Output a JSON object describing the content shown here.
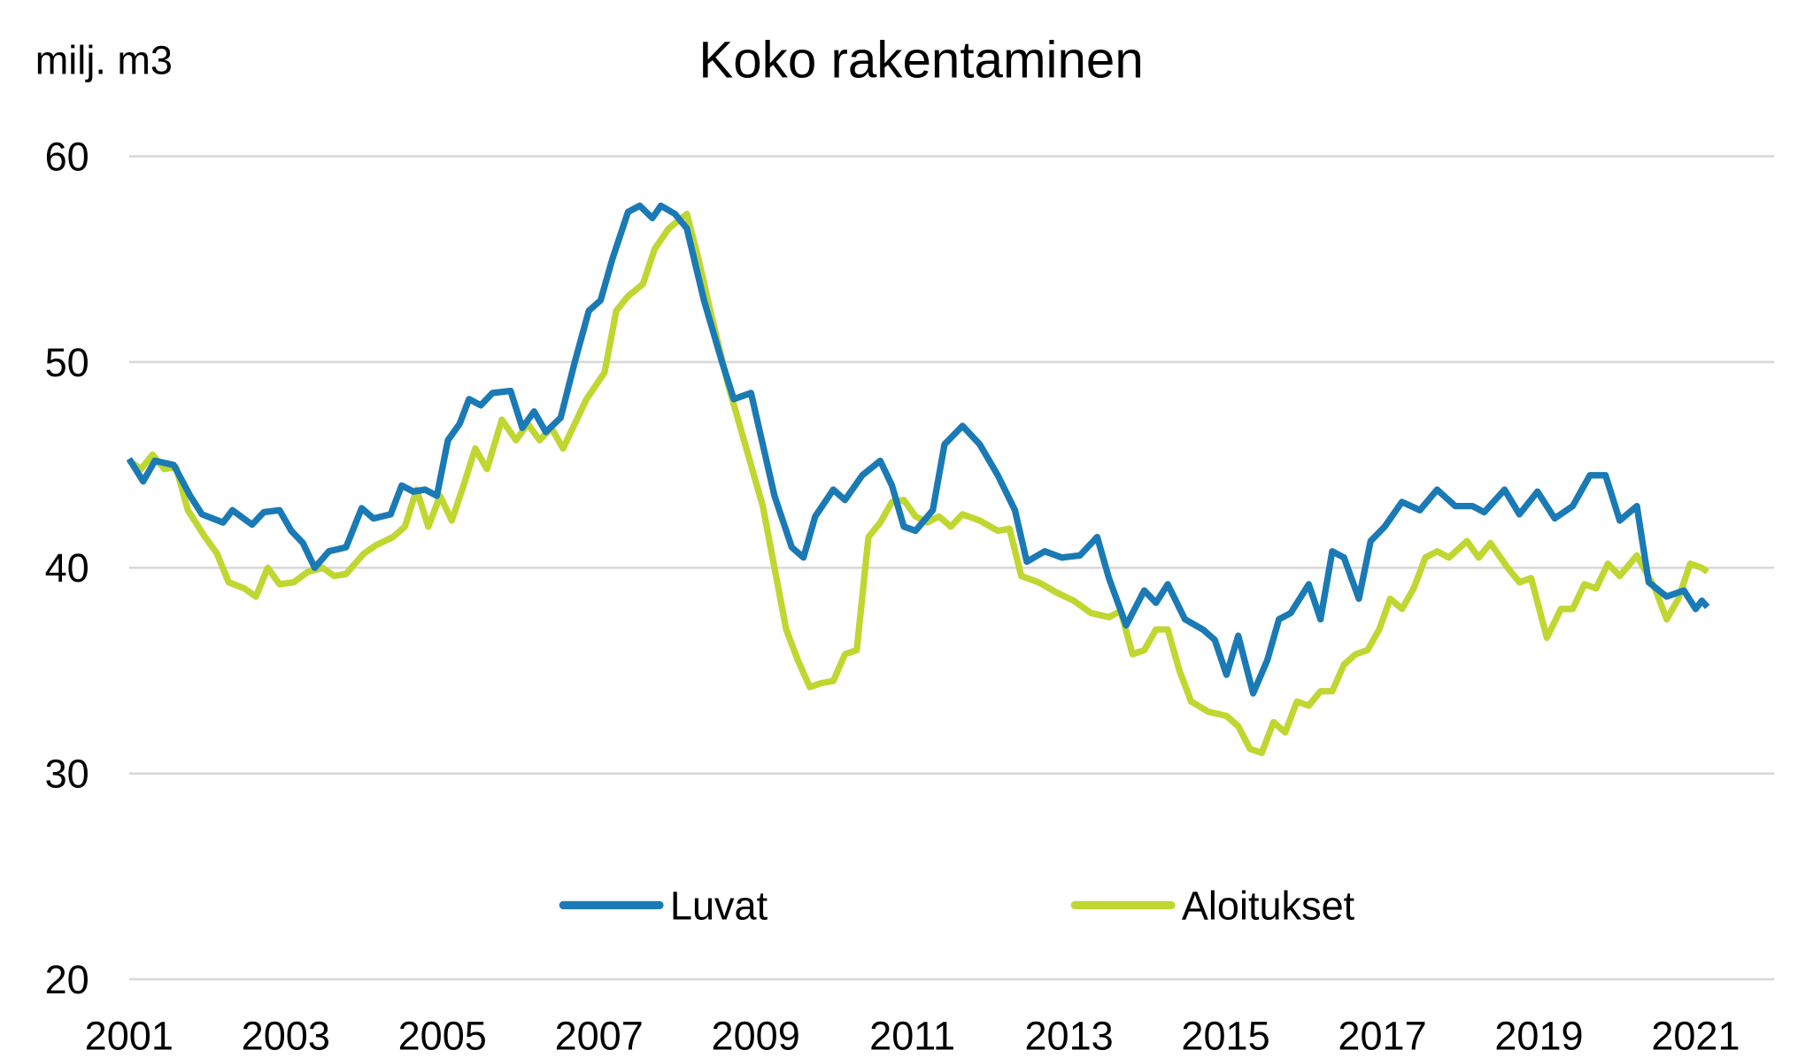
{
  "chart_data": {
    "type": "line",
    "title": "Koko rakentaminen",
    "ylabel": "milj. m3",
    "xlabel": "",
    "ylim": [
      20,
      60
    ],
    "xlim": [
      2001,
      2021.9
    ],
    "yticks": [
      20,
      30,
      40,
      50,
      60
    ],
    "xticks": [
      2001,
      2003,
      2005,
      2007,
      2009,
      2011,
      2013,
      2015,
      2017,
      2019,
      2021
    ],
    "grid": "horizontal",
    "legend_position": "bottom-center",
    "series": [
      {
        "name": "Luvat",
        "color": "#1a7ab5",
        "points": [
          [
            2001.0,
            45.3
          ],
          [
            2001.18,
            44.2
          ],
          [
            2001.33,
            45.2
          ],
          [
            2001.57,
            45.0
          ],
          [
            2001.78,
            43.5
          ],
          [
            2001.93,
            42.6
          ],
          [
            2002.2,
            42.2
          ],
          [
            2002.32,
            42.8
          ],
          [
            2002.57,
            42.1
          ],
          [
            2002.72,
            42.7
          ],
          [
            2002.92,
            42.8
          ],
          [
            2003.07,
            41.8
          ],
          [
            2003.22,
            41.2
          ],
          [
            2003.37,
            40.0
          ],
          [
            2003.55,
            40.8
          ],
          [
            2003.77,
            41.0
          ],
          [
            2003.97,
            42.9
          ],
          [
            2004.12,
            42.4
          ],
          [
            2004.34,
            42.6
          ],
          [
            2004.48,
            44.0
          ],
          [
            2004.63,
            43.7
          ],
          [
            2004.78,
            43.8
          ],
          [
            2004.93,
            43.5
          ],
          [
            2005.07,
            46.2
          ],
          [
            2005.22,
            47.0
          ],
          [
            2005.34,
            48.2
          ],
          [
            2005.49,
            47.9
          ],
          [
            2005.64,
            48.5
          ],
          [
            2005.87,
            48.6
          ],
          [
            2006.02,
            46.8
          ],
          [
            2006.17,
            47.6
          ],
          [
            2006.32,
            46.6
          ],
          [
            2006.51,
            47.3
          ],
          [
            2006.69,
            50.0
          ],
          [
            2006.87,
            52.5
          ],
          [
            2007.02,
            53.0
          ],
          [
            2007.17,
            55.0
          ],
          [
            2007.37,
            57.3
          ],
          [
            2007.52,
            57.6
          ],
          [
            2007.68,
            57.0
          ],
          [
            2007.79,
            57.6
          ],
          [
            2007.97,
            57.2
          ],
          [
            2008.12,
            56.5
          ],
          [
            2008.34,
            53.0
          ],
          [
            2008.57,
            50.0
          ],
          [
            2008.72,
            48.2
          ],
          [
            2008.94,
            48.5
          ],
          [
            2009.09,
            46.0
          ],
          [
            2009.24,
            43.5
          ],
          [
            2009.46,
            41.0
          ],
          [
            2009.61,
            40.5
          ],
          [
            2009.76,
            42.5
          ],
          [
            2009.99,
            43.8
          ],
          [
            2010.14,
            43.3
          ],
          [
            2010.36,
            44.5
          ],
          [
            2010.59,
            45.2
          ],
          [
            2010.74,
            44.0
          ],
          [
            2010.89,
            42.0
          ],
          [
            2011.04,
            41.8
          ],
          [
            2011.26,
            42.8
          ],
          [
            2011.41,
            46.0
          ],
          [
            2011.64,
            46.9
          ],
          [
            2011.86,
            46.0
          ],
          [
            2012.09,
            44.5
          ],
          [
            2012.31,
            42.8
          ],
          [
            2012.46,
            40.3
          ],
          [
            2012.69,
            40.8
          ],
          [
            2012.91,
            40.5
          ],
          [
            2013.14,
            40.6
          ],
          [
            2013.36,
            41.5
          ],
          [
            2013.51,
            39.5
          ],
          [
            2013.73,
            37.2
          ],
          [
            2013.96,
            38.9
          ],
          [
            2014.11,
            38.3
          ],
          [
            2014.26,
            39.2
          ],
          [
            2014.48,
            37.5
          ],
          [
            2014.71,
            37.0
          ],
          [
            2014.86,
            36.5
          ],
          [
            2015.01,
            34.8
          ],
          [
            2015.16,
            36.7
          ],
          [
            2015.35,
            33.9
          ],
          [
            2015.53,
            35.5
          ],
          [
            2015.68,
            37.5
          ],
          [
            2015.83,
            37.8
          ],
          [
            2016.06,
            39.2
          ],
          [
            2016.21,
            37.5
          ],
          [
            2016.36,
            40.8
          ],
          [
            2016.51,
            40.5
          ],
          [
            2016.7,
            38.5
          ],
          [
            2016.85,
            41.3
          ],
          [
            2017.03,
            42.0
          ],
          [
            2017.25,
            43.2
          ],
          [
            2017.48,
            42.8
          ],
          [
            2017.7,
            43.8
          ],
          [
            2017.93,
            43.0
          ],
          [
            2018.15,
            43.0
          ],
          [
            2018.3,
            42.7
          ],
          [
            2018.56,
            43.8
          ],
          [
            2018.75,
            42.6
          ],
          [
            2018.98,
            43.7
          ],
          [
            2019.2,
            42.4
          ],
          [
            2019.43,
            43.0
          ],
          [
            2019.65,
            44.5
          ],
          [
            2019.85,
            44.5
          ],
          [
            2020.03,
            42.3
          ],
          [
            2020.25,
            43.0
          ],
          [
            2020.4,
            39.3
          ],
          [
            2020.63,
            38.6
          ],
          [
            2020.85,
            38.9
          ],
          [
            2021.0,
            38.0
          ],
          [
            2021.08,
            38.4
          ],
          [
            2021.15,
            38.1
          ]
        ]
      },
      {
        "name": "Aloitukset",
        "color": "#bfd730",
        "points": [
          [
            2001.0,
            45.2
          ],
          [
            2001.15,
            44.8
          ],
          [
            2001.3,
            45.5
          ],
          [
            2001.45,
            44.8
          ],
          [
            2001.6,
            44.9
          ],
          [
            2001.75,
            42.8
          ],
          [
            2001.97,
            41.5
          ],
          [
            2002.12,
            40.7
          ],
          [
            2002.27,
            39.3
          ],
          [
            2002.47,
            39.0
          ],
          [
            2002.62,
            38.6
          ],
          [
            2002.77,
            40.0
          ],
          [
            2002.92,
            39.2
          ],
          [
            2003.1,
            39.3
          ],
          [
            2003.28,
            39.8
          ],
          [
            2003.47,
            40.0
          ],
          [
            2003.62,
            39.6
          ],
          [
            2003.77,
            39.7
          ],
          [
            2004.0,
            40.7
          ],
          [
            2004.15,
            41.1
          ],
          [
            2004.37,
            41.5
          ],
          [
            2004.52,
            42.0
          ],
          [
            2004.67,
            43.8
          ],
          [
            2004.82,
            42.0
          ],
          [
            2004.97,
            43.5
          ],
          [
            2005.12,
            42.3
          ],
          [
            2005.27,
            44.0
          ],
          [
            2005.42,
            45.8
          ],
          [
            2005.57,
            44.8
          ],
          [
            2005.76,
            47.2
          ],
          [
            2005.94,
            46.2
          ],
          [
            2006.09,
            47.0
          ],
          [
            2006.24,
            46.2
          ],
          [
            2006.39,
            46.8
          ],
          [
            2006.54,
            45.8
          ],
          [
            2006.69,
            47.0
          ],
          [
            2006.84,
            48.2
          ],
          [
            2007.07,
            49.5
          ],
          [
            2007.22,
            52.5
          ],
          [
            2007.37,
            53.2
          ],
          [
            2007.56,
            53.8
          ],
          [
            2007.71,
            55.5
          ],
          [
            2007.89,
            56.5
          ],
          [
            2008.12,
            57.2
          ],
          [
            2008.27,
            55.0
          ],
          [
            2008.42,
            52.5
          ],
          [
            2008.64,
            49.0
          ],
          [
            2008.79,
            47.0
          ],
          [
            2008.94,
            45.0
          ],
          [
            2009.09,
            43.0
          ],
          [
            2009.24,
            40.0
          ],
          [
            2009.39,
            37.0
          ],
          [
            2009.54,
            35.5
          ],
          [
            2009.69,
            34.2
          ],
          [
            2009.84,
            34.4
          ],
          [
            2009.99,
            34.5
          ],
          [
            2010.14,
            35.8
          ],
          [
            2010.29,
            36.0
          ],
          [
            2010.44,
            41.5
          ],
          [
            2010.59,
            42.2
          ],
          [
            2010.74,
            43.2
          ],
          [
            2010.89,
            43.3
          ],
          [
            2011.04,
            42.5
          ],
          [
            2011.19,
            42.2
          ],
          [
            2011.34,
            42.5
          ],
          [
            2011.49,
            42.0
          ],
          [
            2011.64,
            42.6
          ],
          [
            2011.86,
            42.3
          ],
          [
            2012.09,
            41.8
          ],
          [
            2012.24,
            41.9
          ],
          [
            2012.39,
            39.6
          ],
          [
            2012.61,
            39.3
          ],
          [
            2012.84,
            38.8
          ],
          [
            2013.06,
            38.4
          ],
          [
            2013.28,
            37.8
          ],
          [
            2013.51,
            37.6
          ],
          [
            2013.66,
            37.9
          ],
          [
            2013.81,
            35.8
          ],
          [
            2013.96,
            36.0
          ],
          [
            2014.11,
            37.0
          ],
          [
            2014.26,
            37.0
          ],
          [
            2014.41,
            35.0
          ],
          [
            2014.56,
            33.5
          ],
          [
            2014.78,
            33.0
          ],
          [
            2015.01,
            32.8
          ],
          [
            2015.16,
            32.3
          ],
          [
            2015.31,
            31.2
          ],
          [
            2015.46,
            31.0
          ],
          [
            2015.61,
            32.5
          ],
          [
            2015.76,
            32.0
          ],
          [
            2015.91,
            33.5
          ],
          [
            2016.06,
            33.3
          ],
          [
            2016.21,
            34.0
          ],
          [
            2016.36,
            34.0
          ],
          [
            2016.51,
            35.3
          ],
          [
            2016.66,
            35.8
          ],
          [
            2016.81,
            36.0
          ],
          [
            2016.96,
            37.0
          ],
          [
            2017.1,
            38.5
          ],
          [
            2017.25,
            38.0
          ],
          [
            2017.4,
            39.0
          ],
          [
            2017.55,
            40.5
          ],
          [
            2017.7,
            40.8
          ],
          [
            2017.85,
            40.5
          ],
          [
            2018.08,
            41.3
          ],
          [
            2018.23,
            40.5
          ],
          [
            2018.38,
            41.2
          ],
          [
            2018.6,
            40.0
          ],
          [
            2018.75,
            39.3
          ],
          [
            2018.9,
            39.5
          ],
          [
            2019.1,
            36.6
          ],
          [
            2019.28,
            38.0
          ],
          [
            2019.43,
            38.0
          ],
          [
            2019.58,
            39.2
          ],
          [
            2019.73,
            39.0
          ],
          [
            2019.88,
            40.2
          ],
          [
            2020.03,
            39.6
          ],
          [
            2020.25,
            40.6
          ],
          [
            2020.48,
            39.0
          ],
          [
            2020.63,
            37.5
          ],
          [
            2020.78,
            38.5
          ],
          [
            2020.93,
            40.2
          ],
          [
            2021.08,
            40.0
          ],
          [
            2021.15,
            39.8
          ]
        ]
      }
    ]
  }
}
